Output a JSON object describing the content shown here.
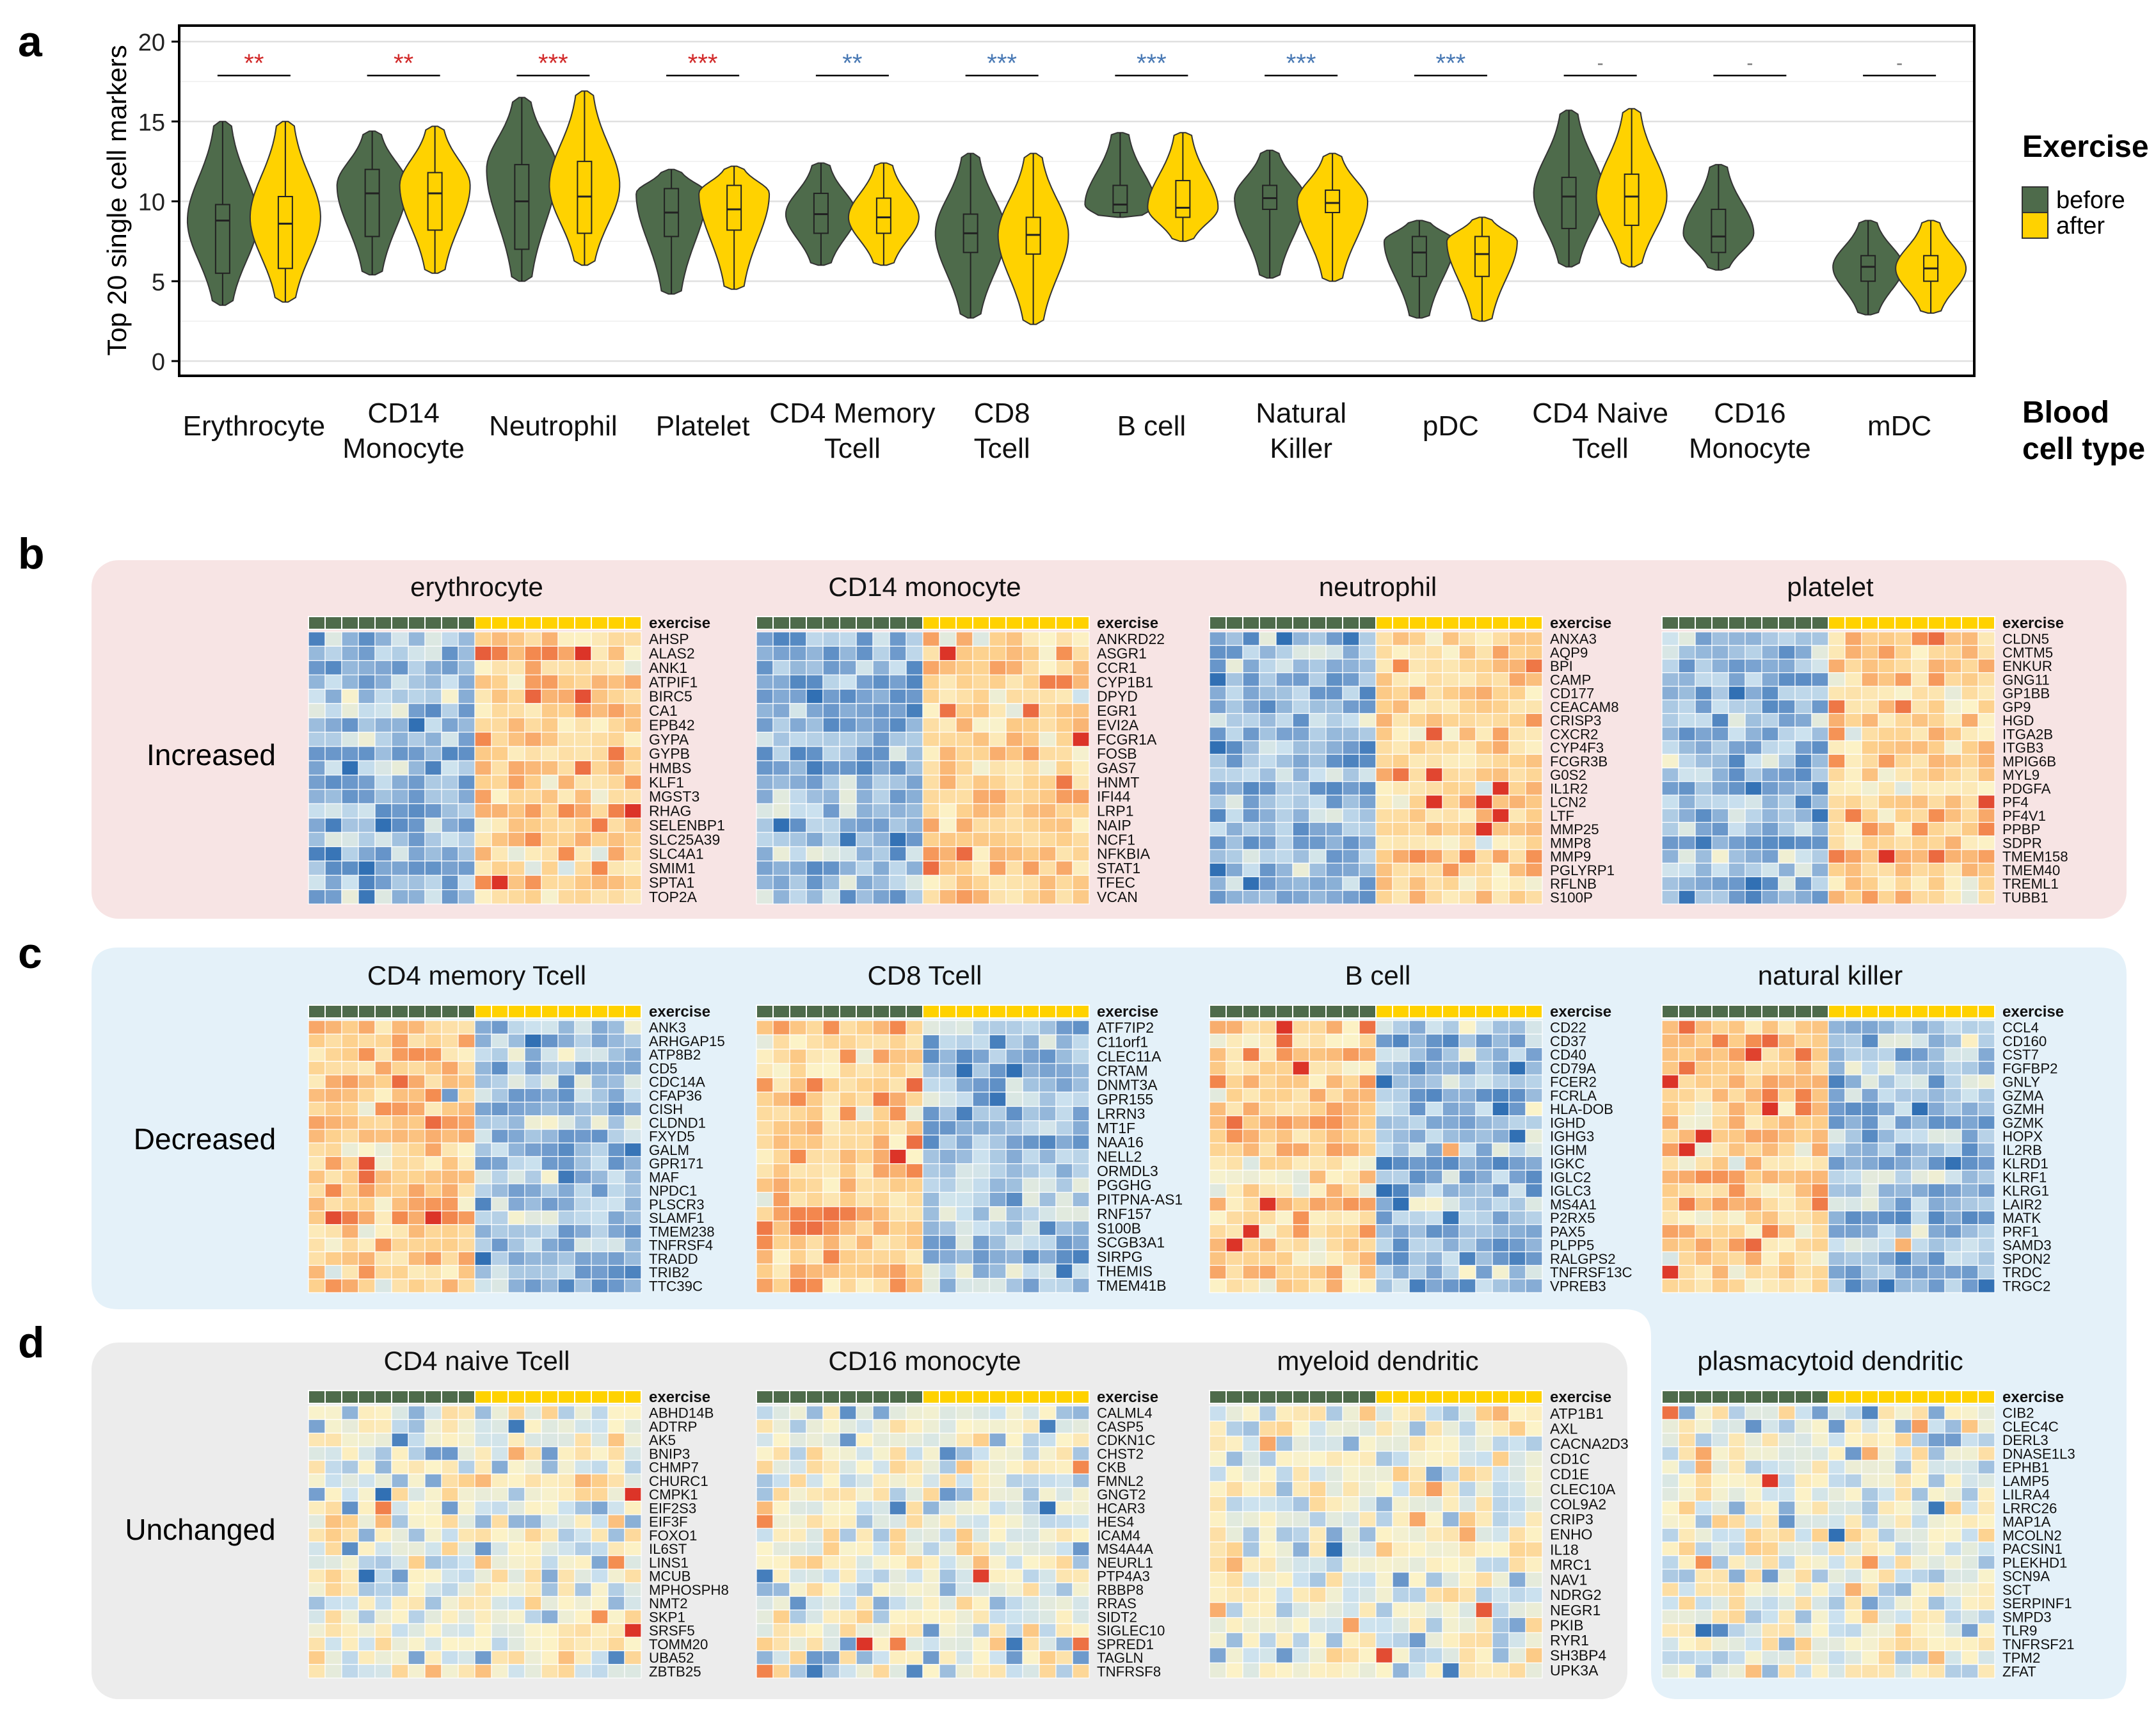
{
  "panels": {
    "a": "a",
    "b": "b",
    "c": "c",
    "d": "d"
  },
  "chart_data": [
    {
      "type": "violin",
      "panel": "a",
      "ylabel": "Top 20 single cell markers",
      "ylim": [
        0,
        20
      ],
      "yticks": [
        0,
        5,
        10,
        15,
        20
      ],
      "xaxis_title": [
        "Blood",
        "cell type"
      ],
      "legend": {
        "title": "Exercise",
        "position": "right",
        "items": [
          {
            "label": "before",
            "color": "#4e6b4b"
          },
          {
            "label": "after",
            "color": "#ffd200"
          }
        ]
      },
      "significance_colors": {
        "up": "#d22b2b",
        "down": "#4a7ab5",
        "ns": "#777777"
      },
      "groups": [
        {
          "label": [
            "Erythrocyte"
          ],
          "sig": "**",
          "dir": "up",
          "before": {
            "min": 3.5,
            "q1": 5.5,
            "median": 8.8,
            "q3": 9.8,
            "max": 15,
            "mode": 8.8
          },
          "after": {
            "min": 3.7,
            "q1": 5.8,
            "median": 8.6,
            "q3": 10.3,
            "max": 15,
            "mode": 9
          }
        },
        {
          "label": [
            "CD14",
            "Monocyte"
          ],
          "sig": "**",
          "dir": "up",
          "before": {
            "min": 5.4,
            "q1": 7.8,
            "median": 10.5,
            "q3": 12,
            "max": 14.4,
            "mode": 11
          },
          "after": {
            "min": 5.5,
            "q1": 8.2,
            "median": 10.5,
            "q3": 11.8,
            "max": 14.7,
            "mode": 11
          }
        },
        {
          "label": [
            "Neutrophil"
          ],
          "sig": "***",
          "dir": "up",
          "before": {
            "min": 5,
            "q1": 7,
            "median": 10,
            "q3": 12.3,
            "max": 16.5,
            "mode": 12
          },
          "after": {
            "min": 6,
            "q1": 8,
            "median": 10.3,
            "q3": 12.5,
            "max": 16.9,
            "mode": 11
          }
        },
        {
          "label": [
            "Platelet"
          ],
          "sig": "***",
          "dir": "up",
          "before": {
            "min": 4.2,
            "q1": 7.8,
            "median": 9.3,
            "q3": 10.8,
            "max": 12,
            "mode": 10.5
          },
          "after": {
            "min": 4.5,
            "q1": 8.2,
            "median": 9.5,
            "q3": 11,
            "max": 12.2,
            "mode": 10.5
          }
        },
        {
          "label": [
            "CD4 Memory",
            "Tcell"
          ],
          "sig": "**",
          "dir": "down",
          "before": {
            "min": 6,
            "q1": 8,
            "median": 9.2,
            "q3": 10.5,
            "max": 12.4,
            "mode": 9.2
          },
          "after": {
            "min": 6,
            "q1": 8,
            "median": 9,
            "q3": 10.2,
            "max": 12.4,
            "mode": 9
          }
        },
        {
          "label": [
            "CD8",
            "Tcell"
          ],
          "sig": "***",
          "dir": "down",
          "before": {
            "min": 2.7,
            "q1": 6.8,
            "median": 8,
            "q3": 9.2,
            "max": 13,
            "mode": 8
          },
          "after": {
            "min": 2.3,
            "q1": 6.7,
            "median": 7.9,
            "q3": 9,
            "max": 13,
            "mode": 7.9
          }
        },
        {
          "label": [
            "B cell"
          ],
          "sig": "***",
          "dir": "down",
          "before": {
            "min": 9,
            "q1": 9.3,
            "median": 9.8,
            "q3": 11,
            "max": 14.3,
            "mode": 9.8
          },
          "after": {
            "min": 7.5,
            "q1": 9,
            "median": 9.6,
            "q3": 11.3,
            "max": 14.3,
            "mode": 9.6
          }
        },
        {
          "label": [
            "Natural",
            "Killer"
          ],
          "sig": "***",
          "dir": "down",
          "before": {
            "min": 5.2,
            "q1": 9.5,
            "median": 10.2,
            "q3": 11,
            "max": 13.2,
            "mode": 10.2
          },
          "after": {
            "min": 5,
            "q1": 9.3,
            "median": 9.9,
            "q3": 10.7,
            "max": 13,
            "mode": 10
          }
        },
        {
          "label": [
            "pDC"
          ],
          "sig": "***",
          "dir": "down",
          "before": {
            "min": 2.7,
            "q1": 5.3,
            "median": 6.8,
            "q3": 7.8,
            "max": 8.8,
            "mode": 7.5
          },
          "after": {
            "min": 2.5,
            "q1": 5.3,
            "median": 6.7,
            "q3": 7.8,
            "max": 9,
            "mode": 7.5
          }
        },
        {
          "label": [
            "CD4 Naive",
            "Tcell"
          ],
          "sig": "-",
          "dir": "ns",
          "before": {
            "min": 5.9,
            "q1": 8.3,
            "median": 10.3,
            "q3": 11.5,
            "max": 15.7,
            "mode": 10.5
          },
          "after": {
            "min": 5.9,
            "q1": 8.5,
            "median": 10.3,
            "q3": 11.7,
            "max": 15.8,
            "mode": 10.3
          }
        },
        {
          "label": [
            "CD16",
            "Monocyte"
          ],
          "sig": "-",
          "dir": "ns",
          "before": {
            "min": 5.7,
            "q1": 6.8,
            "median": 7.8,
            "q3": 9.5,
            "max": 12.3,
            "mode": 8
          }
        },
        {
          "label": [
            "mDC"
          ],
          "sig": "-",
          "dir": "ns",
          "before": {
            "min": 2.9,
            "q1": 5,
            "median": 5.9,
            "q3": 6.6,
            "max": 8.8,
            "mode": 5.9
          },
          "after": {
            "min": 3,
            "q1": 5,
            "median": 5.8,
            "q3": 6.6,
            "max": 8.8,
            "mode": 5.8
          }
        }
      ]
    },
    {
      "type": "heatmap",
      "panels": "b-d",
      "annotation_label": "exercise",
      "samples_before": 10,
      "samples_after": 10,
      "colors": {
        "before": "#4e6b4b",
        "after": "#ffd200"
      },
      "row_groups": [
        {
          "label": "Increased",
          "panel": "b",
          "bg": "#f7e4e4"
        },
        {
          "label": "Decreased",
          "panel": "c",
          "bg": "#e4f1f9"
        },
        {
          "label": "Unchanged",
          "panel": "d",
          "bg": "#ececec"
        }
      ],
      "heatmaps": [
        {
          "title": "erythrocyte",
          "pattern": "up",
          "genes": [
            "AHSP",
            "ALAS2",
            "ANK1",
            "ATPIF1",
            "BIRC5",
            "CA1",
            "EPB42",
            "GYPA",
            "GYPB",
            "HMBS",
            "KLF1",
            "MGST3",
            "RHAG",
            "SELENBP1",
            "SLC25A39",
            "SLC4A1",
            "SMIM1",
            "SPTA1",
            "TOP2A"
          ]
        },
        {
          "title": "CD14 monocyte",
          "pattern": "up",
          "genes": [
            "ANKRD22",
            "ASGR1",
            "CCR1",
            "CYP1B1",
            "DPYD",
            "EGR1",
            "EVI2A",
            "FCGR1A",
            "FOSB",
            "GAS7",
            "HNMT",
            "IFI44",
            "LRP1",
            "NAIP",
            "NCF1",
            "NFKBIA",
            "STAT1",
            "TFEC",
            "VCAN"
          ]
        },
        {
          "title": "neutrophil",
          "pattern": "up",
          "genes": [
            "ANXA3",
            "AQP9",
            "BPI",
            "CAMP",
            "CD177",
            "CEACAM8",
            "CRISP3",
            "CXCR2",
            "CYP4F3",
            "FCGR3B",
            "G0S2",
            "IL1R2",
            "LCN2",
            "LTF",
            "MMP25",
            "MMP8",
            "MMP9",
            "PGLYRP1",
            "RFLNB",
            "S100P"
          ]
        },
        {
          "title": "platelet",
          "pattern": "up",
          "genes": [
            "CLDN5",
            "CMTM5",
            "ENKUR",
            "GNG11",
            "GP1BB",
            "GP9",
            "HGD",
            "ITGA2B",
            "ITGB3",
            "MPIG6B",
            "MYL9",
            "PDGFA",
            "PF4",
            "PF4V1",
            "PPBP",
            "SDPR",
            "TMEM158",
            "TMEM40",
            "TREML1",
            "TUBB1"
          ]
        },
        {
          "title": "CD4 memory Tcell",
          "pattern": "down",
          "genes": [
            "ANK3",
            "ARHGAP15",
            "ATP8B2",
            "CD5",
            "CDC14A",
            "CFAP36",
            "CISH",
            "CLDND1",
            "FXYD5",
            "GALM",
            "GPR171",
            "MAF",
            "NPDC1",
            "PLSCR3",
            "SLAMF1",
            "TMEM238",
            "TNFRSF4",
            "TRADD",
            "TRIB2",
            "TTC39C"
          ]
        },
        {
          "title": "CD8 Tcell",
          "pattern": "down",
          "genes": [
            "ATF7IP2",
            "C11orf1",
            "CLEC11A",
            "CRTAM",
            "DNMT3A",
            "GPR155",
            "LRRN3",
            "MT1F",
            "NAA16",
            "NELL2",
            "ORMDL3",
            "PGGHG",
            "PITPNA-AS1",
            "RNF157",
            "S100B",
            "SCGB3A1",
            "SIRPG",
            "THEMIS",
            "TMEM41B"
          ]
        },
        {
          "title": "B cell",
          "pattern": "down",
          "genes": [
            "CD22",
            "CD37",
            "CD40",
            "CD79A",
            "FCER2",
            "FCRLA",
            "HLA-DOB",
            "IGHD",
            "IGHG3",
            "IGHM",
            "IGKC",
            "IGLC2",
            "IGLC3",
            "MS4A1",
            "P2RX5",
            "PAX5",
            "PLPP5",
            "RALGPS2",
            "TNFRSF13C",
            "VPREB3"
          ]
        },
        {
          "title": "natural killer",
          "pattern": "down",
          "genes": [
            "CCL4",
            "CD160",
            "CST7",
            "FGFBP2",
            "GNLY",
            "GZMA",
            "GZMH",
            "GZMK",
            "HOPX",
            "IL2RB",
            "KLRD1",
            "KLRF1",
            "KLRG1",
            "LAIR2",
            "MATK",
            "PRF1",
            "SAMD3",
            "SPON2",
            "TRDC",
            "TRGC2"
          ]
        },
        {
          "title": "CD4 naive Tcell",
          "pattern": "flat",
          "genes": [
            "ABHD14B",
            "ADTRP",
            "AK5",
            "BNIP3",
            "CHMP7",
            "CHURC1",
            "CMPK1",
            "EIF2S3",
            "EIF3F",
            "FOXO1",
            "IL6ST",
            "LINS1",
            "MCUB",
            "MPHOSPH8",
            "NMT2",
            "SKP1",
            "SRSF5",
            "TOMM20",
            "UBA52",
            "ZBTB25"
          ]
        },
        {
          "title": "CD16 monocyte",
          "pattern": "flat",
          "genes": [
            "CALML4",
            "CASP5",
            "CDKN1C",
            "CHST2",
            "CKB",
            "FMNL2",
            "GNGT2",
            "HCAR3",
            "HES4",
            "ICAM4",
            "MS4A4A",
            "NEURL1",
            "PTP4A3",
            "RBBP8",
            "RRAS",
            "SIDT2",
            "SIGLEC10",
            "SPRED1",
            "TAGLN",
            "TNFRSF8"
          ]
        },
        {
          "title": "myeloid dendritic",
          "pattern": "flat",
          "genes": [
            "ATP1B1",
            "AXL",
            "CACNA2D3",
            "CD1C",
            "CD1E",
            "CLEC10A",
            "COL9A2",
            "CRIP3",
            "ENHO",
            "IL18",
            "MRC1",
            "NAV1",
            "NDRG2",
            "NEGR1",
            "PKIB",
            "RYR1",
            "SH3BP4",
            "UPK3A"
          ]
        },
        {
          "title": "plasmacytoid dendritic",
          "pattern": "flat",
          "genes": [
            "CIB2",
            "CLEC4C",
            "DERL3",
            "DNASE1L3",
            "EPHB1",
            "LAMP5",
            "LILRA4",
            "LRRC26",
            "MAP1A",
            "MCOLN2",
            "PACSIN1",
            "PLEKHD1",
            "SCN9A",
            "SCT",
            "SERPINF1",
            "SMPD3",
            "TLR9",
            "TNFRSF21",
            "TPM2",
            "ZFAT"
          ]
        }
      ]
    }
  ]
}
